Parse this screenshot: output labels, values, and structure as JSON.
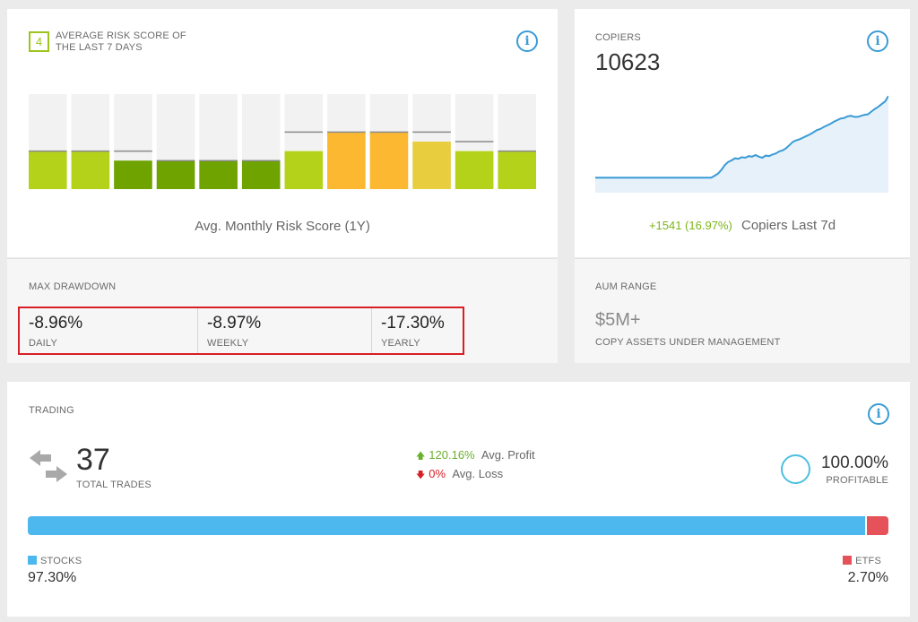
{
  "risk": {
    "score": "4",
    "title": "AVERAGE RISK SCORE OF THE LAST 7 DAYS",
    "chart_caption": "Avg. Monthly Risk Score (1Y)",
    "bar_track_color": "#f2f2f2",
    "bars": [
      {
        "score": 4,
        "max": 4,
        "color": "#b5d21a"
      },
      {
        "score": 4,
        "max": 4,
        "color": "#b5d21a"
      },
      {
        "score": 3,
        "max": 4,
        "color": "#6ea300"
      },
      {
        "score": 3,
        "max": 3,
        "color": "#6ea300"
      },
      {
        "score": 3,
        "max": 3,
        "color": "#6ea300"
      },
      {
        "score": 3,
        "max": 3,
        "color": "#6ea300"
      },
      {
        "score": 4,
        "max": 6,
        "color": "#b5d21a"
      },
      {
        "score": 6,
        "max": 6,
        "color": "#fbb830"
      },
      {
        "score": 6,
        "max": 6,
        "color": "#fbb830"
      },
      {
        "score": 5,
        "max": 6,
        "color": "#e8cd3f"
      },
      {
        "score": 4,
        "max": 5,
        "color": "#b5d21a"
      },
      {
        "score": 4,
        "max": 4,
        "color": "#b5d21a"
      }
    ],
    "scale_max": 10
  },
  "max_drawdown": {
    "label": "MAX DRAWDOWN",
    "items": [
      {
        "value": "-8.96%",
        "label": "DAILY"
      },
      {
        "value": "-8.97%",
        "label": "WEEKLY"
      },
      {
        "value": "-17.30%",
        "label": "YEARLY"
      }
    ]
  },
  "copiers": {
    "label": "COPIERS",
    "value": "10623",
    "change": "+1541 (16.97%)",
    "change_label": "Copiers Last 7d",
    "line_color": "#3a9bd5",
    "fill_color": "#e6f1fa",
    "chart_data": {
      "type": "area",
      "values": [
        9082,
        9082,
        9082,
        9082,
        9082,
        9082,
        9082,
        9082,
        9082,
        9082,
        9082,
        9082,
        9082,
        9082,
        9082,
        9082,
        9082,
        9082,
        9082,
        9082,
        9082,
        9082,
        9082,
        9082,
        9082,
        9082,
        9082,
        9082,
        9082,
        9082,
        9082,
        9082,
        9082,
        9082,
        9082,
        9120,
        9160,
        9230,
        9320,
        9380,
        9410,
        9450,
        9440,
        9470,
        9460,
        9490,
        9480,
        9510,
        9480,
        9460,
        9500,
        9490,
        9520,
        9540,
        9580,
        9600,
        9640,
        9700,
        9760,
        9790,
        9810,
        9840,
        9870,
        9900,
        9940,
        9980,
        10000,
        10040,
        10070,
        10100,
        10140,
        10170,
        10200,
        10210,
        10240,
        10250,
        10230,
        10230,
        10250,
        10270,
        10280,
        10330,
        10380,
        10420,
        10470,
        10520,
        10623
      ],
      "ylim": [
        8800,
        10660
      ]
    }
  },
  "aum": {
    "label": "AUM RANGE",
    "value": "$5M+",
    "sub": "COPY ASSETS UNDER MANAGEMENT"
  },
  "trading": {
    "label": "TRADING",
    "total_trades": "37",
    "total_trades_label": "TOTAL TRADES",
    "avg_profit": "120.16%",
    "avg_profit_label": "Avg. Profit",
    "avg_loss": "0%",
    "avg_loss_label": "Avg. Loss",
    "profitable": "100.00%",
    "profitable_label": "PROFITABLE",
    "stocks_label": "STOCKS",
    "stocks_value": "97.30%",
    "stocks_fraction": 0.973,
    "stocks_color": "#4cb8ee",
    "etfs_label": "ETFS",
    "etfs_value": "2.70%",
    "etfs_fraction": 0.027,
    "etfs_color": "#e5525a"
  },
  "icons": {
    "info": "i",
    "arrow_up": "🡅",
    "arrow_down": "🡇"
  }
}
